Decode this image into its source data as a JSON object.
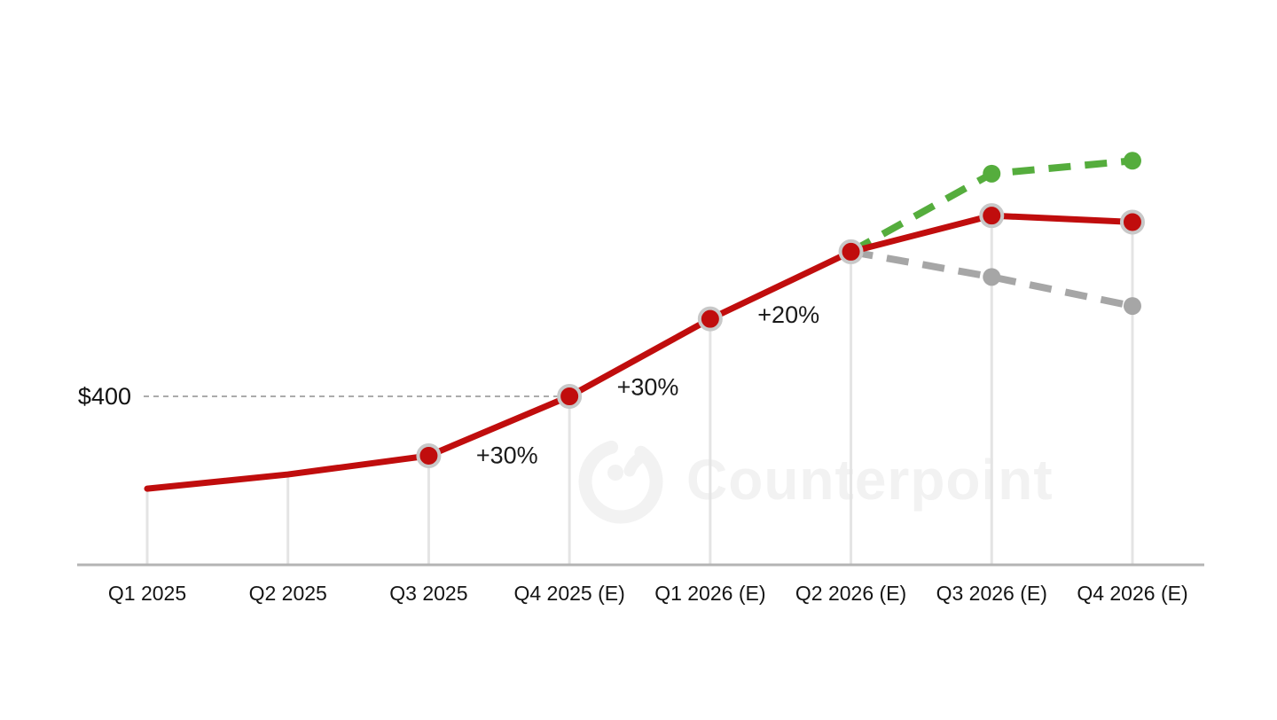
{
  "watermark": {
    "text": "Counterpoint"
  },
  "chart_data": {
    "type": "line",
    "title": "",
    "xlabel": "",
    "ylabel": "",
    "unit": "USD",
    "categories": [
      "Q1 2025",
      "Q2 2025",
      "Q3 2025",
      "Q4 2025 (E)",
      "Q1 2026 (E)",
      "Q2 2026 (E)",
      "Q3 2026 (E)",
      "Q4 2026 (E)"
    ],
    "series": [
      {
        "name": "actual-and-base-forecast",
        "color": "#c00d0d",
        "style": "solid",
        "line_width": 7,
        "values": [
          257,
          279,
          308,
          400,
          520,
          624,
          680,
          670
        ],
        "marker": "ringed-dot",
        "marker_radius": 12,
        "marker_ring_color": "#c8c8c8",
        "marker_indices": [
          2,
          3,
          4,
          5,
          6,
          7
        ]
      },
      {
        "name": "upside-scenario",
        "color": "#55ad3d",
        "style": "dashed",
        "line_width": 8,
        "values": [
          null,
          null,
          null,
          null,
          null,
          624,
          745,
          765
        ],
        "marker": "dot",
        "marker_radius": 10,
        "marker_indices": [
          6,
          7
        ]
      },
      {
        "name": "downside-scenario",
        "color": "#a6a6a6",
        "style": "dashed",
        "line_width": 8,
        "values": [
          null,
          null,
          null,
          null,
          null,
          624,
          585,
          540
        ],
        "marker": "dot",
        "marker_radius": 10,
        "marker_indices": [
          6,
          7
        ]
      }
    ],
    "annotations": [
      {
        "text": "+30%",
        "between_category_indices": [
          2,
          3
        ]
      },
      {
        "text": "+30%",
        "between_category_indices": [
          3,
          4
        ]
      },
      {
        "text": "+20%",
        "between_category_indices": [
          4,
          5
        ]
      }
    ],
    "reference_line": {
      "label": "$400",
      "value": 400,
      "color": "#ababab",
      "style": "dashed",
      "to_category_index": 3
    },
    "axis": {
      "baseline_color": "#b4b4b4",
      "gridline_color": "#e4e4e4",
      "label_color": "#141414"
    },
    "ylim": [
      139,
      806
    ],
    "grid": "vertical-drop-lines",
    "legend": "none"
  }
}
